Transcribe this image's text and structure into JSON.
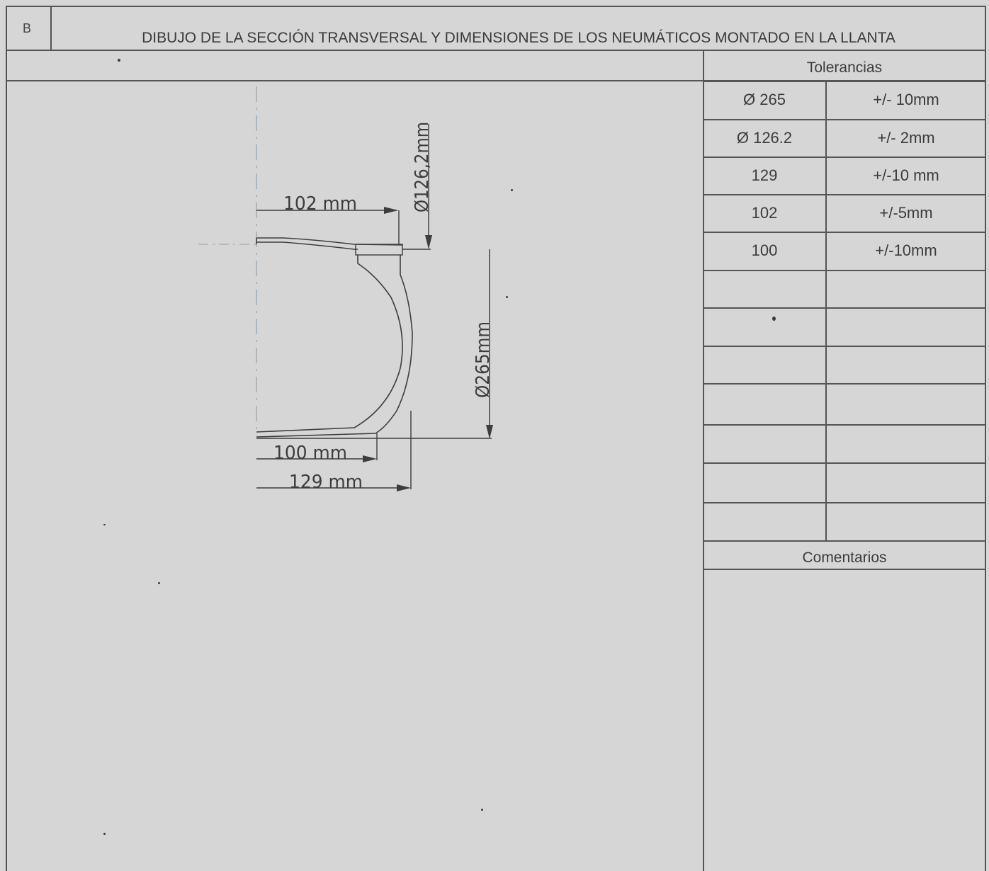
{
  "header": {
    "section_letter": "B",
    "title": "DIBUJO DE LA SECCIÓN TRANSVERSAL Y DIMENSIONES DE LOS NEUMÁTICOS MONTADO EN LA LLANTA"
  },
  "drawing": {
    "dim_102": "102  mm",
    "dim_126": "Ø126,2mm",
    "dim_265": "Ø265mm",
    "dim_100": "100  mm",
    "dim_129": "129  mm"
  },
  "tolerances": {
    "heading": "Tolerancias",
    "rows": [
      {
        "dimension": "Ø 265",
        "tolerance": "+/- 10mm"
      },
      {
        "dimension": "Ø 126.2",
        "tolerance": "+/- 2mm"
      },
      {
        "dimension": "129",
        "tolerance": "+/-10 mm"
      },
      {
        "dimension": "102",
        "tolerance": "+/-5mm"
      },
      {
        "dimension": "100",
        "tolerance": "+/-10mm"
      },
      {
        "dimension": "",
        "tolerance": ""
      },
      {
        "dimension": "",
        "tolerance": ""
      },
      {
        "dimension": "",
        "tolerance": ""
      },
      {
        "dimension": "",
        "tolerance": ""
      },
      {
        "dimension": "",
        "tolerance": ""
      },
      {
        "dimension": "",
        "tolerance": ""
      }
    ]
  },
  "comments": {
    "heading": "Comentarios",
    "text": ""
  }
}
